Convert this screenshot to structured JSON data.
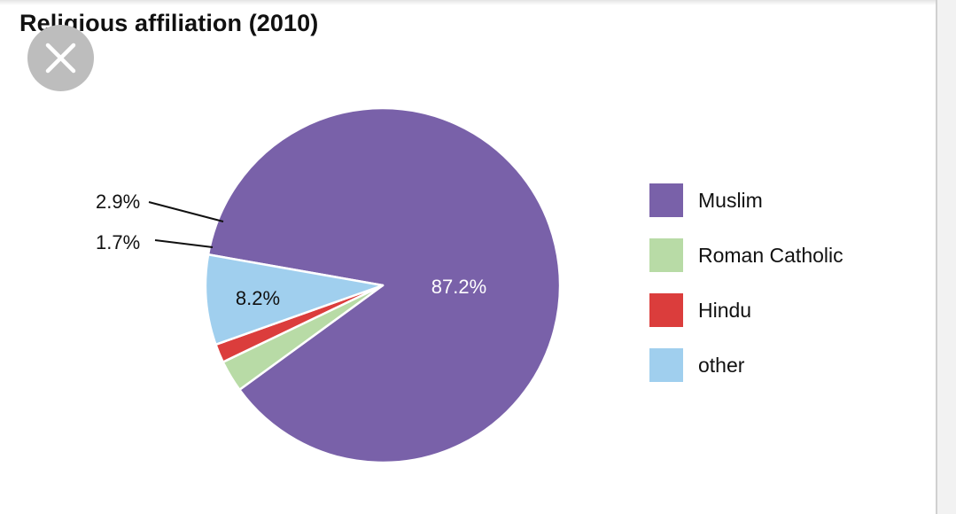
{
  "title": "Religious affiliation (2010)",
  "close_icon": "close-icon",
  "chart_data": {
    "type": "pie",
    "title": "Religious affiliation (2010)",
    "slices": [
      {
        "label": "Muslim",
        "value": 87.2,
        "display": "87.2%",
        "color": "#7961a9"
      },
      {
        "label": "Roman Catholic",
        "value": 2.9,
        "display": "2.9%",
        "color": "#b8dba6"
      },
      {
        "label": "Hindu",
        "value": 1.7,
        "display": "1.7%",
        "color": "#db3d3c"
      },
      {
        "label": "other",
        "value": 8.2,
        "display": "8.2%",
        "color": "#a0cfee"
      }
    ],
    "legend_position": "right"
  }
}
